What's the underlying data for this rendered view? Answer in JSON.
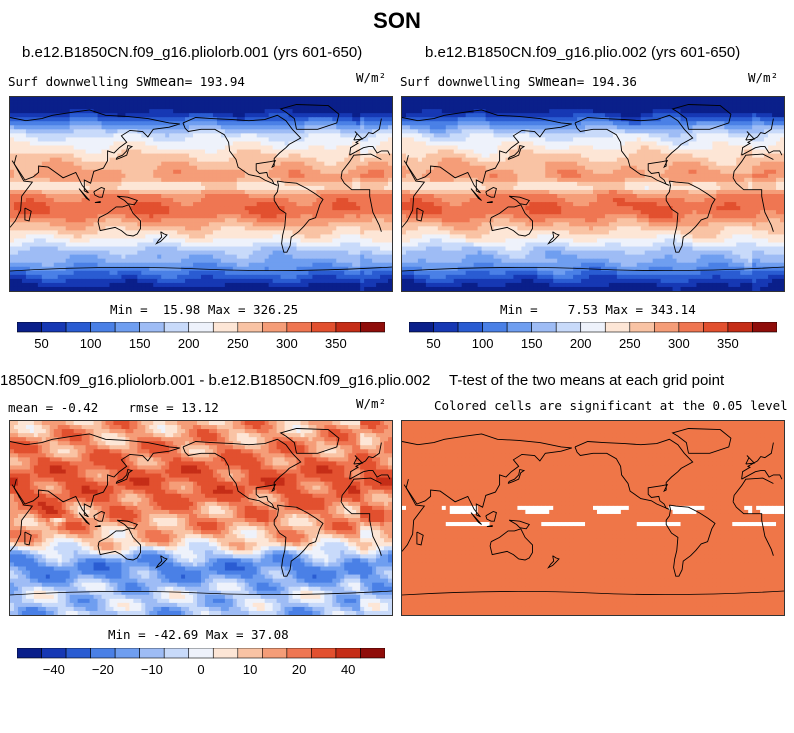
{
  "title": "SON",
  "units": "W/m²",
  "colors": {
    "diverging": [
      "#0a1f8a",
      "#1638b4",
      "#2a5cd2",
      "#4a80e6",
      "#6f9ef0",
      "#9ebcf5",
      "#c8dafa",
      "#eef2fb",
      "#fde6d6",
      "#f9c3a4",
      "#f59d78",
      "#ef7652",
      "#e2502f",
      "#c52d17",
      "#8f0d0a"
    ],
    "land_outline": "#000000",
    "ttest_colored": "#ef7648",
    "ttest_blank": "#ffffff"
  },
  "chart_data": [
    {
      "type": "heatmap",
      "id": "panel-1",
      "title": "b.e12.B1850CN.f09_g16.pliolorb.001 (yrs 601-650)",
      "variable_label": "Surf downwelling SW",
      "stat_label": "mean",
      "stat_value": "193.94",
      "units": "W/m²",
      "min_label": "Min =",
      "min": "15.98",
      "max_label": "Max =",
      "max": "326.25",
      "colorbar": {
        "levels": [
          50,
          100,
          150,
          200,
          250,
          300,
          350
        ],
        "labels": [
          "50",
          "100",
          "150",
          "200",
          "250",
          "300",
          "350"
        ],
        "range": [
          25,
          375
        ],
        "step": 25
      }
    },
    {
      "type": "heatmap",
      "id": "panel-2",
      "title": "b.e12.B1850CN.f09_g16.plio.002 (yrs 601-650)",
      "variable_label": "Surf downwelling SW",
      "stat_label": "mean",
      "stat_value": "194.36",
      "units": "W/m²",
      "min_label": "Min =",
      "min": "7.53",
      "max_label": "Max =",
      "max": "343.14",
      "colorbar": {
        "levels": [
          50,
          100,
          150,
          200,
          250,
          300,
          350
        ],
        "labels": [
          "50",
          "100",
          "150",
          "200",
          "250",
          "300",
          "350"
        ],
        "range": [
          25,
          375
        ],
        "step": 25
      }
    },
    {
      "type": "heatmap",
      "id": "panel-3",
      "title": "1850CN.f09_g16.pliolorb.001 - b.e12.B1850CN.f09_g16.plio.002",
      "mean_label": "mean =",
      "mean": "-0.42",
      "rmse_label": "rmse =",
      "rmse": "13.12",
      "units": "W/m²",
      "min_label": "Min =",
      "min": "-42.69",
      "max_label": "Max =",
      "max": "37.08",
      "colorbar": {
        "levels": [
          -40,
          -20,
          -10,
          0,
          10,
          20,
          40
        ],
        "labels": [
          "−40",
          "−20",
          "−10",
          "0",
          "10",
          "20",
          "40"
        ]
      }
    },
    {
      "type": "heatmap",
      "id": "panel-4",
      "title": "T-test of the two means at each grid point",
      "subtitle": "Colored cells are significant at the 0.05 level"
    }
  ]
}
